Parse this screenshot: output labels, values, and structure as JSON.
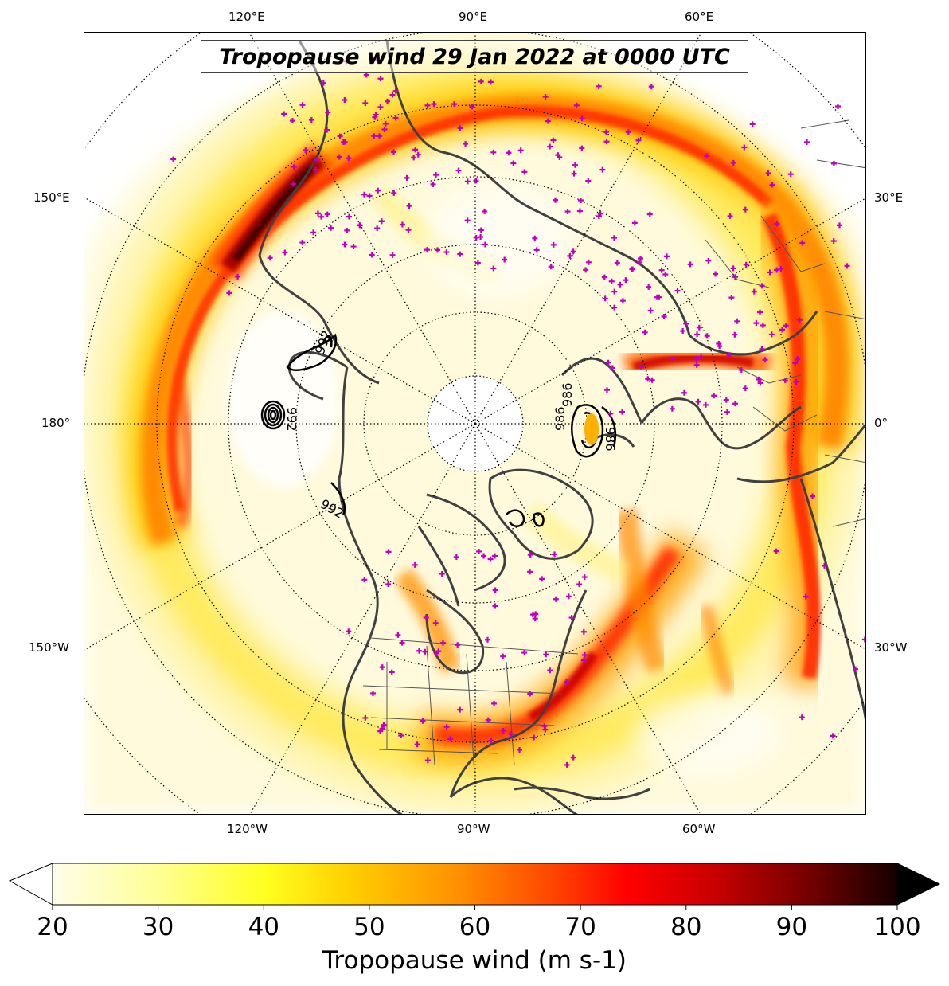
{
  "map": {
    "title": "Tropopause wind 29 Jan 2022 at 0000 UTC",
    "top_longitude_labels": [
      "120°E",
      "90°E",
      "60°E"
    ],
    "bottom_longitude_labels": [
      "120°W",
      "90°W",
      "60°W"
    ],
    "left_longitude_labels": [
      "150°E",
      "180°",
      "150°W"
    ],
    "right_longitude_labels": [
      "30°E",
      "0°",
      "30°W"
    ],
    "contour_labels": [
      "992",
      "992",
      "992",
      "986",
      "986",
      "986"
    ]
  },
  "colorbar": {
    "label": "Tropopause wind (m s-1)",
    "ticks": [
      "20",
      "30",
      "40",
      "50",
      "60",
      "70",
      "80",
      "90",
      "100"
    ],
    "min": 20,
    "max": 100,
    "extend": "both",
    "colormap": "hot_r",
    "colors": {
      "low": "#fffbe6",
      "mid_yellow": "#ffff00",
      "orange": "#ff8000",
      "red": "#ff0000",
      "dark": "#1a0000"
    }
  },
  "colors": {
    "coastline": "#404040",
    "graticule": "#000000",
    "station_marker": "#c000c0",
    "contour": "#000000"
  }
}
